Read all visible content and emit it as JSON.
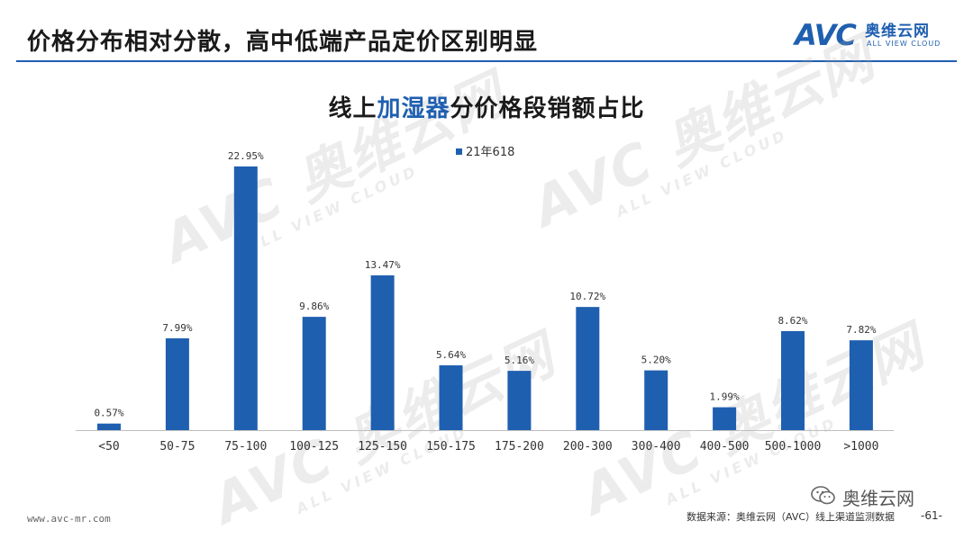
{
  "header": {
    "title": "价格分布相对分散，高中低端产品定价区别明显",
    "logo": {
      "mark": "AVC",
      "cn": "奥维云网",
      "en": "ALL VIEW CLOUD"
    }
  },
  "watermark": {
    "big": "AVC 奥维云网",
    "small": "ALL VIEW CLOUD"
  },
  "chart_data": {
    "type": "bar",
    "title_parts": {
      "prefix": "线上",
      "highlight": "加湿器",
      "suffix": "分价格段销额占比"
    },
    "categories": [
      "<50",
      "50-75",
      "75-100",
      "100-125",
      "125-150",
      "150-175",
      "175-200",
      "200-300",
      "300-400",
      "400-500",
      "500-1000",
      ">1000"
    ],
    "series": [
      {
        "name": "21年618",
        "values": [
          0.57,
          7.99,
          22.95,
          9.86,
          13.47,
          5.64,
          5.16,
          10.72,
          5.2,
          1.99,
          8.62,
          7.82
        ],
        "labels": [
          "0.57%",
          "7.99%",
          "22.95%",
          "9.86%",
          "13.47%",
          "5.64%",
          "5.16%",
          "10.72%",
          "5.20%",
          "1.99%",
          "8.62%",
          "7.82%"
        ]
      }
    ],
    "ylim": [
      0,
      22.95
    ],
    "legend_position": "top-center",
    "grid": false,
    "color": "#1f5fb0"
  },
  "footer": {
    "website": "www.avc-mr.com",
    "source": "数据来源：奥维云网（AVC）线上渠道监测数据",
    "wechat": "奥维云网",
    "page": "-61-"
  }
}
